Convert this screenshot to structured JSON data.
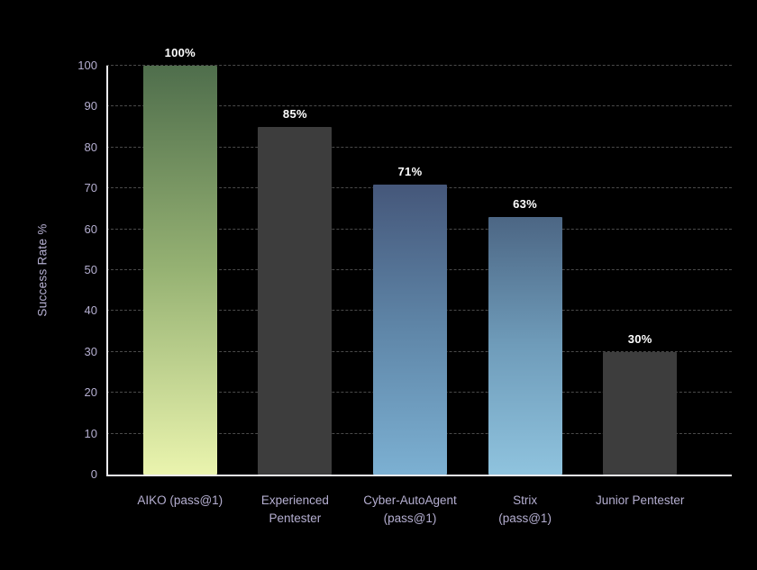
{
  "chart_data": {
    "type": "bar",
    "title": "",
    "xlabel": "",
    "ylabel": "Success Rate %",
    "ylim": [
      0,
      100
    ],
    "yticks": [
      0,
      10,
      20,
      30,
      40,
      50,
      60,
      70,
      80,
      90,
      100
    ],
    "grid": "horizontal-dashed",
    "legend": "none",
    "categories": [
      "AIKO (pass@1)",
      "Experienced Pentester",
      "Cyber-AutoAgent (pass@1)",
      "Strix (pass@1)",
      "Junior Pentester"
    ],
    "category_lines": [
      "AIKO (pass@1)",
      "Experienced\nPentester",
      "Cyber-AutoAgent\n(pass@1)",
      "Strix\n(pass@1)",
      "Junior Pentester"
    ],
    "values": [
      100,
      85,
      71,
      63,
      30
    ],
    "value_labels": [
      "100%",
      "85%",
      "71%",
      "63%",
      "30%"
    ],
    "bar_colors": [
      {
        "type": "gradient",
        "top": "#4f6e4c",
        "mid": "#96b273",
        "bottom": "#eaf4ae"
      },
      {
        "type": "solid",
        "color": "#3d3d3d"
      },
      {
        "type": "gradient",
        "top": "#45577a",
        "mid": "#5f86a8",
        "bottom": "#7cb0d2"
      },
      {
        "type": "gradient",
        "top": "#4c6684",
        "mid": "#6f9cba",
        "bottom": "#8fc3de"
      },
      {
        "type": "solid",
        "color": "#3d3d3d"
      }
    ],
    "colors": {
      "background": "#000000",
      "axis": "#ececf2",
      "grid": "#4a4a4a",
      "tick_label": "#b5afd1",
      "value_label": "#ffffff",
      "y_axis_title": "#b5afd1"
    }
  }
}
